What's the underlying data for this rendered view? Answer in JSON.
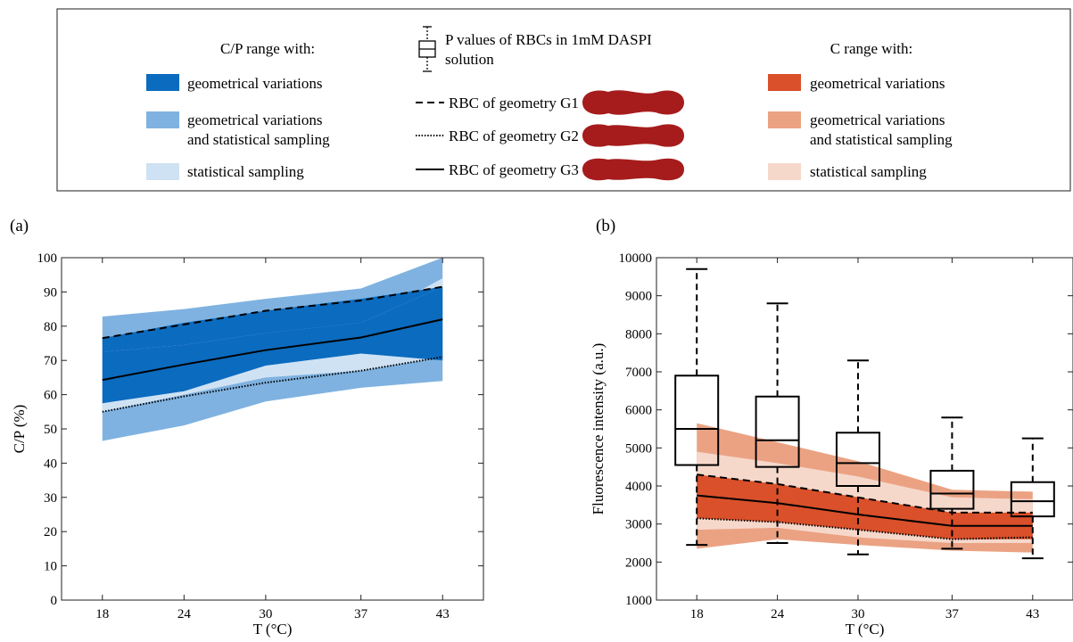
{
  "legend": {
    "cp_title": "C/P range with:",
    "cp_items": [
      {
        "lines": [
          "geometrical variations"
        ],
        "color": "#0b6bbf"
      },
      {
        "lines": [
          "geometrical variations",
          "and statistical sampling"
        ],
        "color": "#7fb2e0"
      },
      {
        "lines": [
          "statistical sampling"
        ],
        "color": "#cfe2f3"
      }
    ],
    "box_label_lines": [
      "P values of RBCs in 1mM DASPI",
      "solution"
    ],
    "geometries": [
      {
        "label": "RBC of geometry G1",
        "style": "dashed",
        "shape": "G1"
      },
      {
        "label": "RBC of geometry G2",
        "style": "dotted",
        "shape": "G2"
      },
      {
        "label": "RBC of geometry G3",
        "style": "solid",
        "shape": "G3"
      }
    ],
    "rbc_color": "#a61c1c",
    "c_title": "C range with:",
    "c_items": [
      {
        "lines": [
          "geometrical variations"
        ],
        "color": "#d9502a"
      },
      {
        "lines": [
          "geometrical variations",
          "and statistical sampling"
        ],
        "color": "#eba283"
      },
      {
        "lines": [
          "statistical sampling"
        ],
        "color": "#f6d8cb"
      }
    ]
  },
  "chart_data": [
    {
      "type": "area",
      "panel_label": "(a)",
      "xlabel": "T (°C)",
      "ylabel": "C/P (%)",
      "x": [
        18,
        24,
        30,
        37,
        43
      ],
      "xticks": [
        "18",
        "24",
        "30",
        "37",
        "43"
      ],
      "xlim": [
        15,
        46
      ],
      "ylim": [
        0,
        100
      ],
      "yticks": [
        "0",
        "10",
        "20",
        "30",
        "40",
        "50",
        "60",
        "70",
        "80",
        "90",
        "100"
      ],
      "bands": [
        {
          "role": "geometrical variations and statistical sampling",
          "lower": [
            46.5,
            51,
            58,
            62,
            64
          ],
          "upper": [
            82.8,
            85,
            88,
            91,
            100
          ],
          "color": "#7fb2e0"
        },
        {
          "role": "statistical sampling",
          "lower": [
            55,
            60,
            65,
            67,
            71
          ],
          "upper": [
            73,
            75.5,
            78,
            81,
            94
          ],
          "color": "#cfe2f3"
        },
        {
          "role": "geometrical variations",
          "lower": [
            57.5,
            61,
            68.5,
            72,
            70
          ],
          "upper": [
            72.5,
            74.5,
            78,
            81,
            91.5
          ],
          "color": "#0b6bbf"
        },
        {
          "role": "geometrical variations",
          "lower": [
            72.5,
            74.5,
            78,
            81,
            91.5
          ],
          "upper": [
            76.5,
            81,
            84.5,
            88,
            91.5
          ],
          "color": "#0b6bbf"
        }
      ],
      "lines": [
        {
          "geometry": "G1",
          "style": "dashed",
          "y": [
            76.5,
            80.5,
            84.5,
            87.5,
            91.5
          ]
        },
        {
          "geometry": "G2",
          "style": "dotted",
          "y": [
            55,
            59.5,
            63.5,
            67,
            71
          ]
        },
        {
          "geometry": "G3",
          "style": "solid",
          "y": [
            64.3,
            68.8,
            73,
            76.7,
            82
          ]
        }
      ]
    },
    {
      "type": "area",
      "panel_label": "(b)",
      "xlabel": "T (°C)",
      "ylabel": "Fluorescence intensity (a.u.)",
      "x": [
        18,
        24,
        30,
        37,
        43
      ],
      "xticks": [
        "18",
        "24",
        "30",
        "37",
        "43"
      ],
      "xlim": [
        15,
        46
      ],
      "ylim": [
        1000,
        10000
      ],
      "yticks": [
        "1000",
        "2000",
        "3000",
        "4000",
        "5000",
        "6000",
        "7000",
        "8000",
        "9000",
        "10000"
      ],
      "bands": [
        {
          "role": "geometrical variations and statistical sampling",
          "lower": [
            2350,
            2600,
            2450,
            2300,
            2250
          ],
          "upper": [
            5650,
            5150,
            4650,
            3900,
            3850
          ],
          "color": "#eba283"
        },
        {
          "role": "statistical sampling",
          "lower": [
            2850,
            2900,
            2650,
            2500,
            2500
          ],
          "upper": [
            4900,
            4600,
            4250,
            3700,
            3650
          ],
          "color": "#f6d8cb"
        },
        {
          "role": "geometrical variations",
          "lower": [
            3150,
            3050,
            2850,
            2600,
            2600
          ],
          "upper": [
            4300,
            4050,
            3700,
            3300,
            3300
          ],
          "color": "#d9502a"
        }
      ],
      "lines": [
        {
          "geometry": "G1",
          "style": "dashed",
          "y": [
            4300,
            4050,
            3700,
            3300,
            3300
          ]
        },
        {
          "geometry": "G2",
          "style": "dotted",
          "y": [
            3150,
            3050,
            2850,
            2600,
            2650
          ]
        },
        {
          "geometry": "G3",
          "style": "solid",
          "y": [
            3750,
            3550,
            3250,
            2950,
            2950
          ]
        }
      ],
      "boxes": [
        {
          "x": 18,
          "min": 2450,
          "q1": 4550,
          "median": 5500,
          "q3": 6900,
          "max": 9700
        },
        {
          "x": 24,
          "min": 2500,
          "q1": 4500,
          "median": 5200,
          "q3": 6350,
          "max": 8800
        },
        {
          "x": 30,
          "min": 2200,
          "q1": 4000,
          "median": 4600,
          "q3": 5400,
          "max": 7300
        },
        {
          "x": 37,
          "min": 2350,
          "q1": 3400,
          "median": 3800,
          "q3": 4400,
          "max": 5800
        },
        {
          "x": 43,
          "min": 2100,
          "q1": 3200,
          "median": 3600,
          "q3": 4100,
          "max": 5250
        }
      ]
    }
  ]
}
